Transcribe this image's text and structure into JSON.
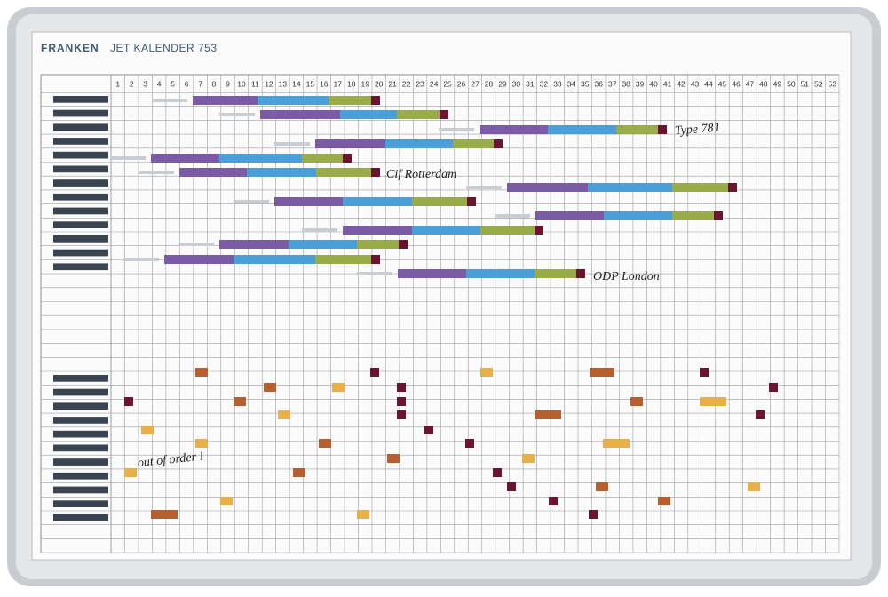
{
  "header": {
    "brand": "FRANKEN",
    "title": "JET KALENDER 753"
  },
  "weeks": [
    1,
    2,
    3,
    4,
    5,
    6,
    7,
    8,
    9,
    10,
    11,
    12,
    13,
    14,
    15,
    16,
    17,
    18,
    19,
    20,
    21,
    22,
    23,
    24,
    25,
    26,
    27,
    28,
    29,
    30,
    31,
    32,
    33,
    34,
    35,
    36,
    37,
    38,
    39,
    40,
    41,
    42,
    43,
    44,
    45,
    46,
    47,
    48,
    49,
    50,
    51,
    52,
    53
  ],
  "notes": [
    "Type 781",
    "Cif Rotterdam",
    "ODP London",
    "out of order !"
  ]
}
